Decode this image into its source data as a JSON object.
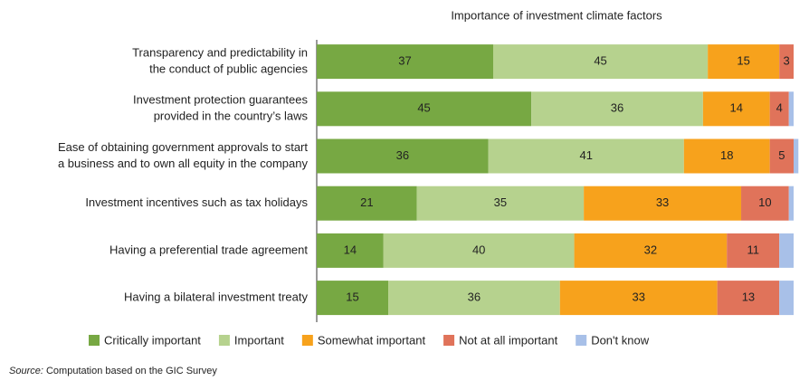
{
  "chart_data": {
    "type": "stacked-bar-horizontal",
    "title": "Importance of investment climate factors",
    "categories": [
      [
        "Transparency and predictability in",
        "the conduct of public agencies"
      ],
      [
        "Investment protection guarantees",
        "provided in the country’s laws"
      ],
      [
        "Ease of obtaining government approvals to start",
        "a business and to own all equity in the company"
      ],
      [
        "Investment incentives such as tax holidays"
      ],
      [
        "Having a preferential trade agreement"
      ],
      [
        "Having a bilateral investment treaty"
      ]
    ],
    "series": [
      {
        "name": "Critically important",
        "color": "#77a843",
        "values": [
          37,
          45,
          36,
          21,
          14,
          15
        ],
        "show_labels": true
      },
      {
        "name": "Important",
        "color": "#b6d28e",
        "values": [
          45,
          36,
          41,
          35,
          40,
          36
        ],
        "show_labels": true
      },
      {
        "name": "Somewhat important",
        "color": "#f7a21c",
        "values": [
          15,
          14,
          18,
          33,
          32,
          33
        ],
        "show_labels": true
      },
      {
        "name": "Not at all important",
        "color": "#e0735a",
        "values": [
          3,
          4,
          5,
          10,
          11,
          13
        ],
        "show_labels": true
      },
      {
        "name": "Don't know",
        "color": "#a8c0e8",
        "values": [
          0,
          1,
          1,
          1,
          3,
          3
        ],
        "show_labels": false
      }
    ],
    "xlim": [
      0,
      100
    ],
    "source_label": "Source:",
    "source_text": "Computation based on the GIC Survey"
  }
}
